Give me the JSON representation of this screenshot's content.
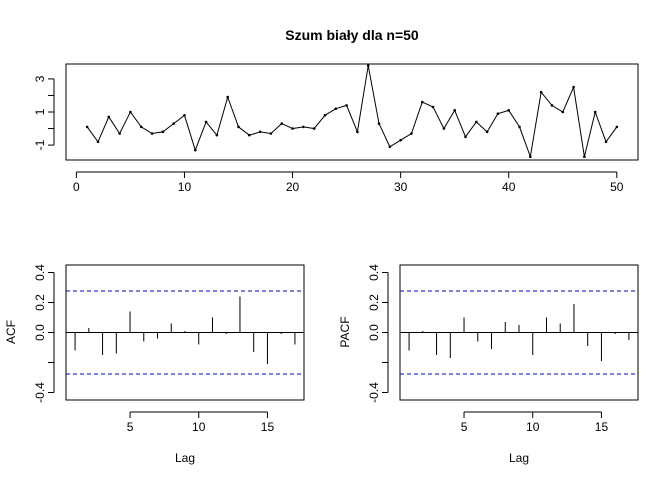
{
  "chart_data": [
    {
      "type": "line",
      "title": "Szum biały dla n=50",
      "xlabel": "",
      "ylabel": "",
      "xlim": [
        -0.96,
        51.96
      ],
      "ylim": [
        -1.9,
        3.9
      ],
      "x_ticks": [
        0,
        10,
        20,
        30,
        40,
        50
      ],
      "x_tick_labels": [
        "0",
        "10",
        "20",
        "30",
        "40",
        "50"
      ],
      "y_ticks": [
        -1,
        0,
        1,
        2,
        3
      ],
      "y_tick_labels": [
        "-1",
        "",
        "1",
        "",
        "3"
      ],
      "grid": false,
      "series": [
        {
          "color": "#000000",
          "x": [
            1,
            2,
            3,
            4,
            5,
            6,
            7,
            8,
            9,
            10,
            11,
            12,
            13,
            14,
            15,
            16,
            17,
            18,
            19,
            20,
            21,
            22,
            23,
            24,
            25,
            26,
            27,
            28,
            29,
            30,
            31,
            32,
            33,
            34,
            35,
            36,
            37,
            38,
            39,
            40,
            41,
            42,
            43,
            44,
            45,
            46,
            47,
            48,
            49,
            50
          ],
          "y": [
            0.1,
            -0.8,
            0.7,
            -0.3,
            1.0,
            0.1,
            -0.3,
            -0.2,
            0.3,
            0.8,
            -1.3,
            0.4,
            -0.4,
            1.9,
            0.1,
            -0.4,
            -0.2,
            -0.3,
            0.3,
            0.0,
            0.1,
            0.0,
            0.8,
            1.2,
            1.4,
            -0.2,
            3.8,
            0.3,
            -1.1,
            -0.7,
            -0.3,
            1.6,
            1.3,
            0.0,
            1.1,
            -0.5,
            0.4,
            -0.2,
            0.9,
            1.1,
            0.1,
            -1.7,
            2.2,
            1.4,
            1.0,
            2.5,
            -1.7,
            1.0,
            -0.8,
            0.1
          ]
        }
      ]
    },
    {
      "type": "bar",
      "title": "",
      "xlabel": "Lag",
      "ylabel": "ACF",
      "xlim": [
        0.34,
        17.66
      ],
      "ylim": [
        -0.45,
        0.45
      ],
      "x_ticks": [
        5,
        10,
        15
      ],
      "x_tick_labels": [
        "5",
        "10",
        "15"
      ],
      "y_ticks": [
        -0.4,
        -0.2,
        0.0,
        0.2,
        0.4
      ],
      "y_tick_labels": [
        "-0.4",
        "",
        "0.0",
        "0.2",
        "0.4"
      ],
      "confidence_bounds": [
        0.277,
        -0.277
      ],
      "confidence_color": "#0000CC",
      "lags": [
        1,
        2,
        3,
        4,
        5,
        6,
        7,
        8,
        9,
        10,
        11,
        12,
        13,
        14,
        15,
        16,
        17
      ],
      "values": [
        -0.12,
        0.03,
        -0.15,
        -0.14,
        0.14,
        -0.06,
        -0.04,
        0.06,
        0.01,
        -0.08,
        0.1,
        -0.01,
        0.24,
        -0.13,
        -0.21,
        -0.01,
        -0.08
      ]
    },
    {
      "type": "bar",
      "title": "",
      "xlabel": "Lag",
      "ylabel": "PACF",
      "xlim": [
        0.34,
        17.66
      ],
      "ylim": [
        -0.45,
        0.45
      ],
      "x_ticks": [
        5,
        10,
        15
      ],
      "x_tick_labels": [
        "5",
        "10",
        "15"
      ],
      "y_ticks": [
        -0.4,
        -0.2,
        0.0,
        0.2,
        0.4
      ],
      "y_tick_labels": [
        "-0.4",
        "",
        "0.0",
        "0.2",
        "0.4"
      ],
      "confidence_bounds": [
        0.277,
        -0.277
      ],
      "confidence_color": "#0000CC",
      "lags": [
        1,
        2,
        3,
        4,
        5,
        6,
        7,
        8,
        9,
        10,
        11,
        12,
        13,
        14,
        15,
        16,
        17
      ],
      "values": [
        -0.12,
        0.01,
        -0.15,
        -0.17,
        0.1,
        -0.06,
        -0.11,
        0.07,
        0.05,
        -0.15,
        0.1,
        0.06,
        0.19,
        -0.09,
        -0.19,
        -0.01,
        -0.05
      ]
    }
  ]
}
